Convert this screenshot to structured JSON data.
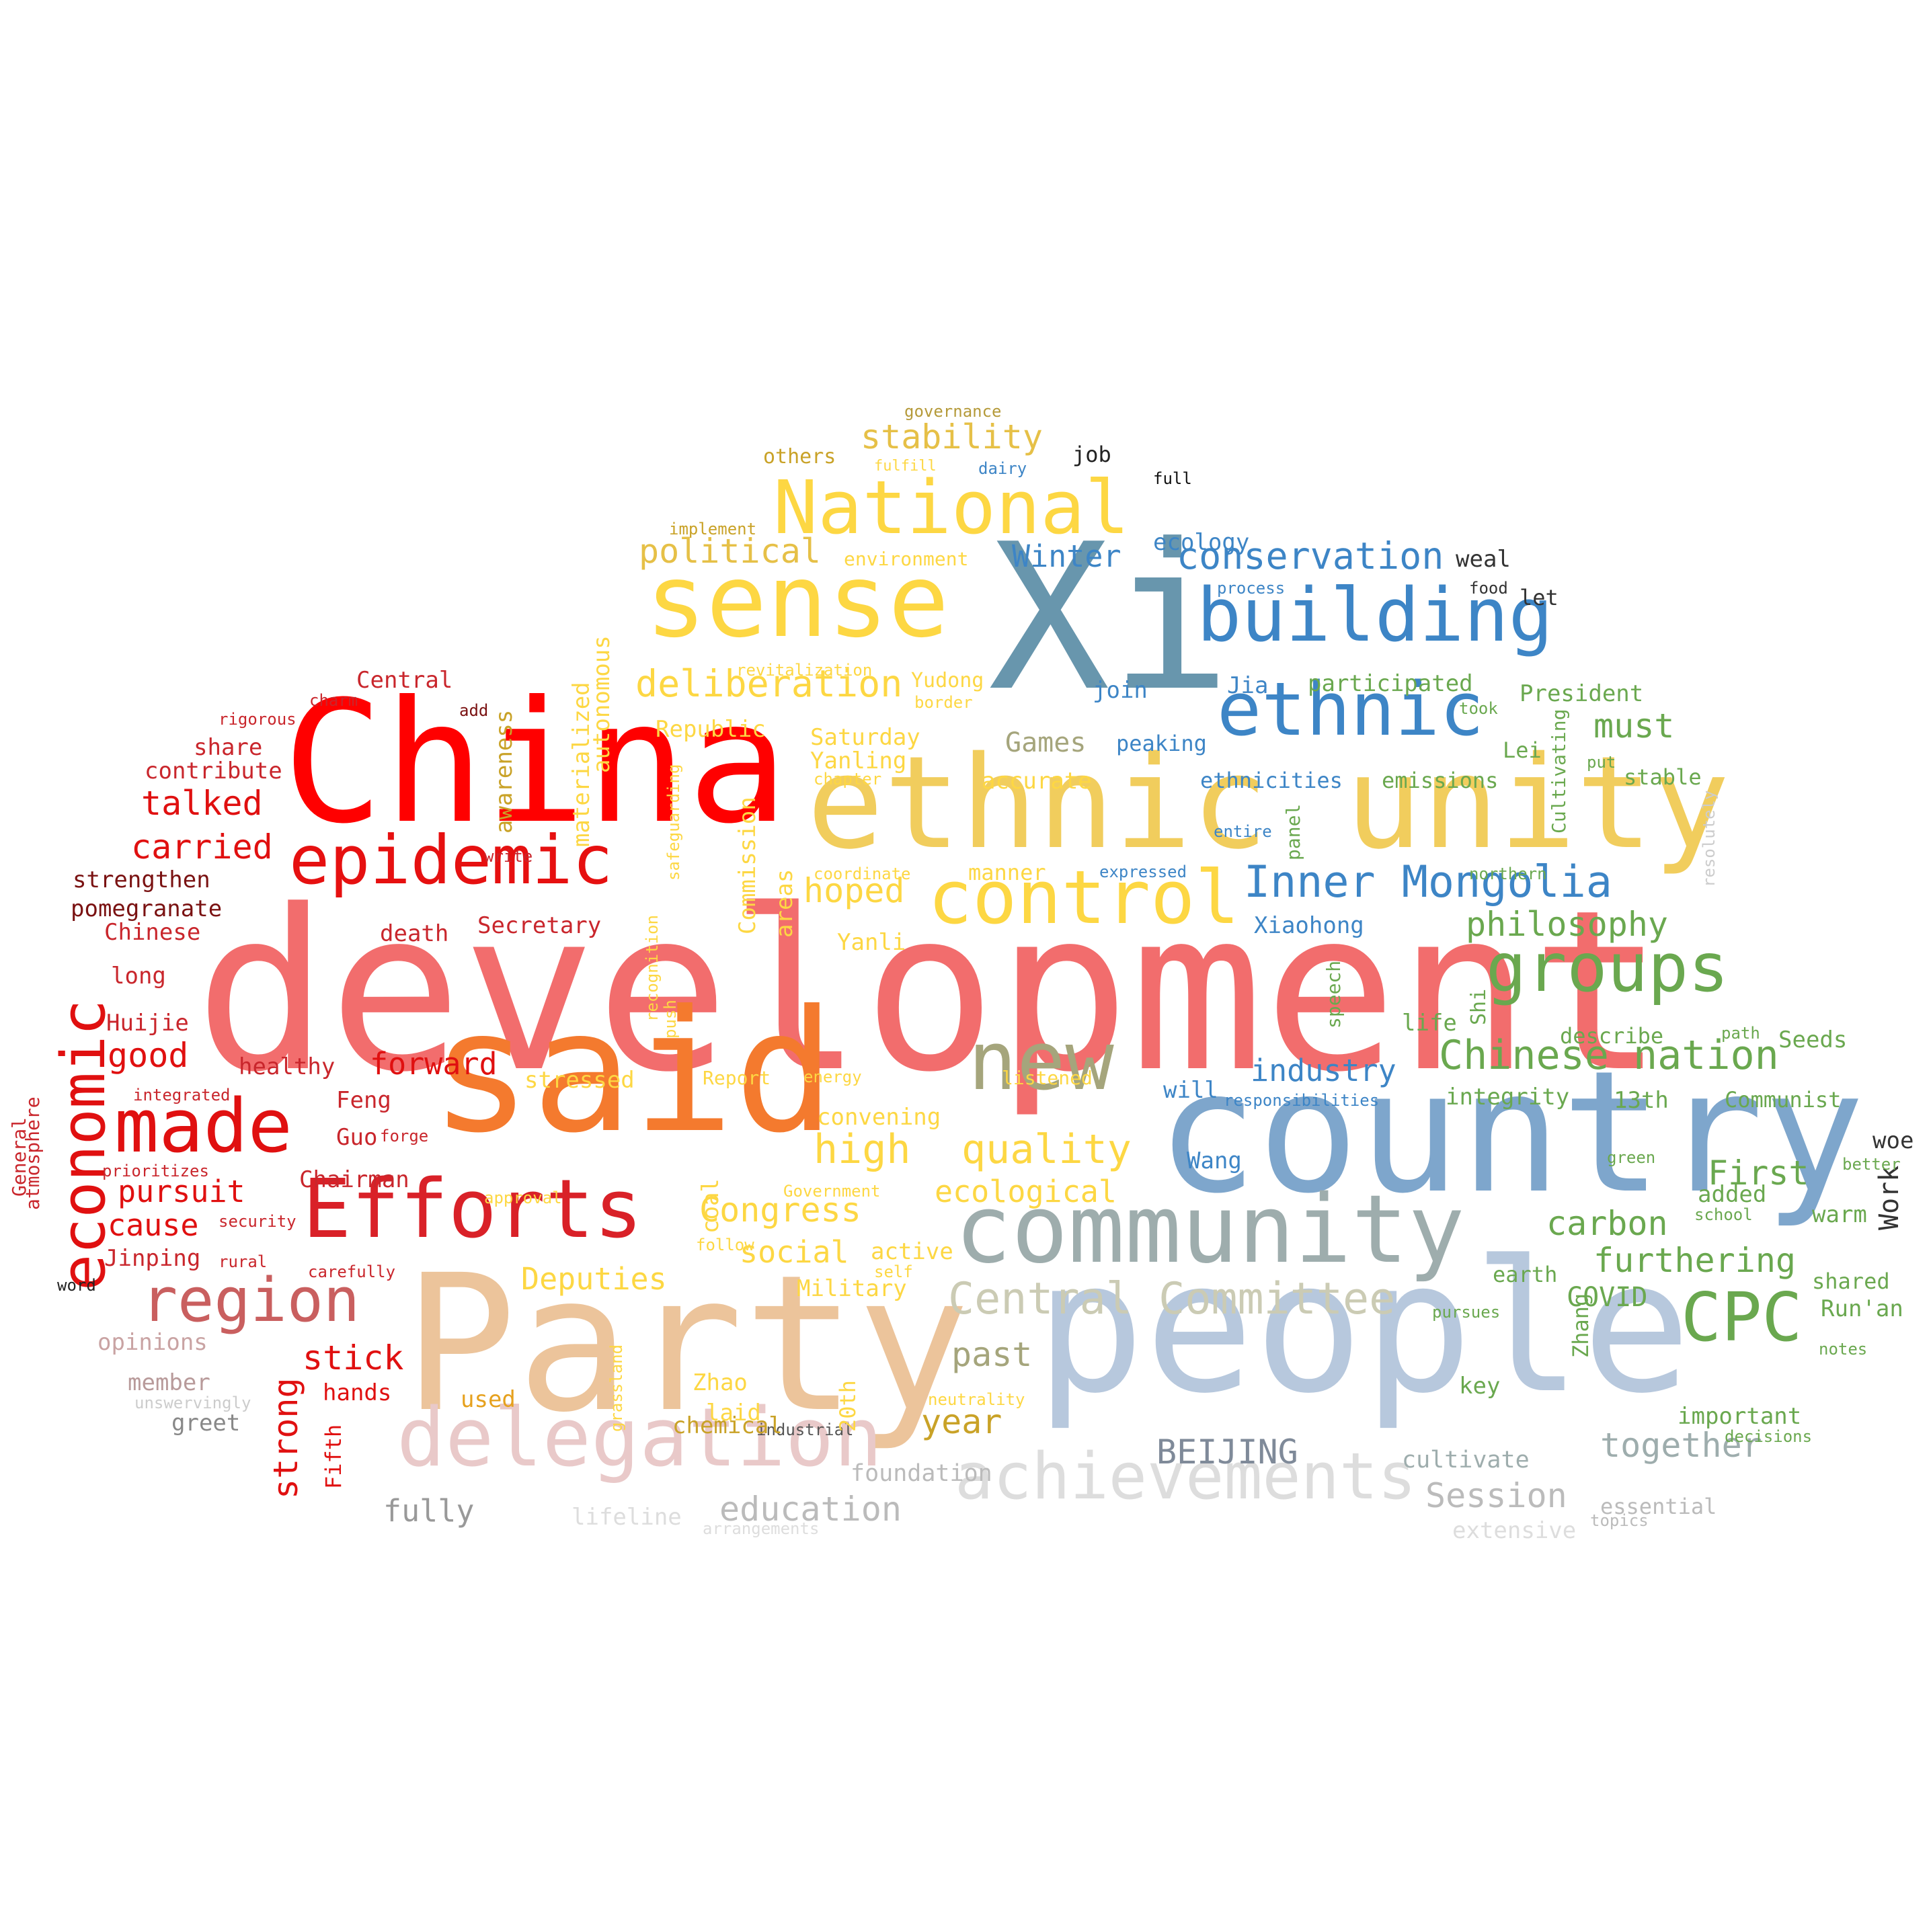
{
  "cloud": {
    "words": [
      {
        "text": "development",
        "color": "#f26d6d",
        "weight": 1.0
      },
      {
        "text": "people",
        "color": "#b7c8dd",
        "weight": 0.95
      },
      {
        "text": "country",
        "color": "#7ea6cc",
        "weight": 0.92
      },
      {
        "text": "Xi",
        "color": "#6896ad",
        "weight": 0.9
      },
      {
        "text": "Party",
        "color": "#ecc49b",
        "weight": 0.88
      },
      {
        "text": "China",
        "color": "#ff0000",
        "weight": 0.86
      },
      {
        "text": "said",
        "color": "#f47a2e",
        "weight": 0.84
      },
      {
        "text": "ethnic unity",
        "color": "#f1cd5d",
        "weight": 0.8
      },
      {
        "text": "sense",
        "color": "#fdd743",
        "weight": 0.7
      },
      {
        "text": "community",
        "color": "#9eadad",
        "weight": 0.65
      },
      {
        "text": "delegation",
        "color": "#e9c9c9",
        "weight": 0.62
      },
      {
        "text": "building",
        "color": "#3d85c6",
        "weight": 0.6
      },
      {
        "text": "ethnic",
        "color": "#3d85c6",
        "weight": 0.58
      },
      {
        "text": "Efforts",
        "color": "#d92128",
        "weight": 0.58
      },
      {
        "text": "achievements",
        "color": "#dddddd",
        "weight": 0.56
      },
      {
        "text": "new",
        "color": "#a5a57c",
        "weight": 0.55
      },
      {
        "text": "made",
        "color": "#e01010",
        "weight": 0.55
      },
      {
        "text": "epidemic",
        "color": "#e61010",
        "weight": 0.52
      },
      {
        "text": "control",
        "color": "#fdd743",
        "weight": 0.52
      },
      {
        "text": "National",
        "color": "#fdd743",
        "weight": 0.5
      },
      {
        "text": "groups",
        "color": "#6aa84f",
        "weight": 0.5
      },
      {
        "text": "region",
        "color": "#c95f5f",
        "weight": 0.48
      },
      {
        "text": "economic",
        "color": "#e01010",
        "weight": 0.48
      },
      {
        "text": "CPC",
        "color": "#6aa84f",
        "weight": 0.46
      },
      {
        "text": "Central Committee",
        "color": "#cbcbb4",
        "weight": 0.4
      },
      {
        "text": "Inner Mongolia",
        "color": "#3d85c6",
        "weight": 0.4
      },
      {
        "text": "Chinese nation",
        "color": "#6aa84f",
        "weight": 0.38
      },
      {
        "text": "conservation",
        "color": "#3d85c6",
        "weight": 0.35
      },
      {
        "text": "deliberation",
        "color": "#fdd743",
        "weight": 0.35
      },
      {
        "text": "political",
        "color": "#e6c047",
        "weight": 0.34
      },
      {
        "text": "stability",
        "color": "#e6c047",
        "weight": 0.34
      },
      {
        "text": "philosophy",
        "color": "#6aa84f",
        "weight": 0.34
      },
      {
        "text": "quality",
        "color": "#fdd743",
        "weight": 0.34
      },
      {
        "text": "high",
        "color": "#fdd743",
        "weight": 0.34
      },
      {
        "text": "Congress",
        "color": "#fdd743",
        "weight": 0.32
      },
      {
        "text": "ecological",
        "color": "#fdd743",
        "weight": 0.3
      },
      {
        "text": "stick",
        "color": "#e01010",
        "weight": 0.32
      },
      {
        "text": "strong",
        "color": "#e01010",
        "weight": 0.3
      },
      {
        "text": "talked",
        "color": "#e01010",
        "weight": 0.3
      },
      {
        "text": "carried",
        "color": "#e01010",
        "weight": 0.3
      },
      {
        "text": "good",
        "color": "#e01010",
        "weight": 0.3
      },
      {
        "text": "pursuit",
        "color": "#e01010",
        "weight": 0.28
      },
      {
        "text": "cause",
        "color": "#e01010",
        "weight": 0.28
      },
      {
        "text": "forward",
        "color": "#e01010",
        "weight": 0.28
      },
      {
        "text": "industry",
        "color": "#3d85c6",
        "weight": 0.32
      },
      {
        "text": "together",
        "color": "#9eadad",
        "weight": 0.32
      },
      {
        "text": "furthering",
        "color": "#6aa84f",
        "weight": 0.32
      },
      {
        "text": "carbon",
        "color": "#6aa84f",
        "weight": 0.3
      },
      {
        "text": "must",
        "color": "#6aa84f",
        "weight": 0.3
      },
      {
        "text": "First",
        "color": "#6aa84f",
        "weight": 0.3
      },
      {
        "text": "past",
        "color": "#a5a57c",
        "weight": 0.3
      },
      {
        "text": "year",
        "color": "#c9a227",
        "weight": 0.3
      },
      {
        "text": "Session",
        "color": "#bbbbbb",
        "weight": 0.3
      },
      {
        "text": "BEIJING",
        "color": "#7f8a99",
        "weight": 0.28
      },
      {
        "text": "education",
        "color": "#bbbbbb",
        "weight": 0.28
      },
      {
        "text": "fully",
        "color": "#999999",
        "weight": 0.26
      },
      {
        "text": "Deputies",
        "color": "#fdd743",
        "weight": 0.28
      },
      {
        "text": "social",
        "color": "#fdd743",
        "weight": 0.28
      },
      {
        "text": "hoped",
        "color": "#fdd743",
        "weight": 0.28
      },
      {
        "text": "Winter",
        "color": "#3d85c6",
        "weight": 0.26
      },
      {
        "text": "Games",
        "color": "#a5a57c",
        "weight": 0.26
      },
      {
        "text": "COVID",
        "color": "#6aa84f",
        "weight": 0.26
      },
      {
        "text": "Work",
        "color": "#333333",
        "weight": 0.26
      },
      {
        "text": "cultivate",
        "color": "#9eadad",
        "weight": 0.2
      },
      {
        "text": "foundation",
        "color": "#bbbbbb",
        "weight": 0.2
      },
      {
        "text": "others",
        "color": "#c9a227",
        "weight": 0.2
      },
      {
        "text": "job",
        "color": "#222222",
        "weight": 0.2
      },
      {
        "text": "full",
        "color": "#111111",
        "weight": 0.14
      },
      {
        "text": "governance",
        "color": "#b59a3a",
        "weight": 0.14
      },
      {
        "text": "fulfill",
        "color": "#fdd743",
        "weight": 0.14
      },
      {
        "text": "dairy",
        "color": "#3d85c6",
        "weight": 0.14
      },
      {
        "text": "implement",
        "color": "#c9a227",
        "weight": 0.14
      },
      {
        "text": "environment",
        "color": "#fdd743",
        "weight": 0.16
      },
      {
        "text": "ecology",
        "color": "#3d85c6",
        "weight": 0.18
      },
      {
        "text": "weal",
        "color": "#333333",
        "weight": 0.18
      },
      {
        "text": "process",
        "color": "#3d85c6",
        "weight": 0.14
      },
      {
        "text": "food",
        "color": "#333333",
        "weight": 0.14
      },
      {
        "text": "let",
        "color": "#333333",
        "weight": 0.18
      },
      {
        "text": "revitalization",
        "color": "#fdd743",
        "weight": 0.14
      },
      {
        "text": "Yudong",
        "color": "#fdd743",
        "weight": 0.18
      },
      {
        "text": "join",
        "color": "#3d85c6",
        "weight": 0.18
      },
      {
        "text": "Jia",
        "color": "#3d85c6",
        "weight": 0.18
      },
      {
        "text": "participated",
        "color": "#6aa84f",
        "weight": 0.18
      },
      {
        "text": "President",
        "color": "#6aa84f",
        "weight": 0.18
      },
      {
        "text": "took",
        "color": "#6aa84f",
        "weight": 0.14
      },
      {
        "text": "border",
        "color": "#fdd743",
        "weight": 0.14
      },
      {
        "text": "Republic",
        "color": "#fdd743",
        "weight": 0.18
      },
      {
        "text": "Saturday",
        "color": "#fdd743",
        "weight": 0.18
      },
      {
        "text": "Yanling",
        "color": "#fdd743",
        "weight": 0.18
      },
      {
        "text": "peaking",
        "color": "#3d85c6",
        "weight": 0.18
      },
      {
        "text": "Lei",
        "color": "#6aa84f",
        "weight": 0.18
      },
      {
        "text": "put",
        "color": "#6aa84f",
        "weight": 0.14
      },
      {
        "text": "stable",
        "color": "#6aa84f",
        "weight": 0.18
      },
      {
        "text": "chapter",
        "color": "#fdd743",
        "weight": 0.14
      },
      {
        "text": "accurate",
        "color": "#fdd743",
        "weight": 0.2
      },
      {
        "text": "ethnicities",
        "color": "#3d85c6",
        "weight": 0.18
      },
      {
        "text": "emissions",
        "color": "#6aa84f",
        "weight": 0.18
      },
      {
        "text": "entire",
        "color": "#3d85c6",
        "weight": 0.14
      },
      {
        "text": "panel",
        "color": "#6aa84f",
        "weight": 0.14
      },
      {
        "text": "Cultivating",
        "color": "#6aa84f",
        "weight": 0.14
      },
      {
        "text": "coordinate",
        "color": "#fdd743",
        "weight": 0.14
      },
      {
        "text": "manner",
        "color": "#fdd743",
        "weight": 0.18
      },
      {
        "text": "expressed",
        "color": "#3d85c6",
        "weight": 0.14
      },
      {
        "text": "northern",
        "color": "#6aa84f",
        "weight": 0.14
      },
      {
        "text": "resolutely",
        "color": "#cccccc",
        "weight": 0.14
      },
      {
        "text": "Xiaohong",
        "color": "#3d85c6",
        "weight": 0.18
      },
      {
        "text": "Yanli",
        "color": "#fdd743",
        "weight": 0.18
      },
      {
        "text": "speech",
        "color": "#6aa84f",
        "weight": 0.14
      },
      {
        "text": "life",
        "color": "#6aa84f",
        "weight": 0.18
      },
      {
        "text": "Shi",
        "color": "#6aa84f",
        "weight": 0.16
      },
      {
        "text": "describe",
        "color": "#6aa84f",
        "weight": 0.18
      },
      {
        "text": "path",
        "color": "#6aa84f",
        "weight": 0.14
      },
      {
        "text": "Seeds",
        "color": "#6aa84f",
        "weight": 0.18
      },
      {
        "text": "listened",
        "color": "#fdd743",
        "weight": 0.14
      },
      {
        "text": "energy",
        "color": "#fdd743",
        "weight": 0.14
      },
      {
        "text": "Report",
        "color": "#fdd743",
        "weight": 0.14
      },
      {
        "text": "stressed",
        "color": "#fdd743",
        "weight": 0.18
      },
      {
        "text": "convening",
        "color": "#fdd743",
        "weight": 0.18
      },
      {
        "text": "will",
        "color": "#3d85c6",
        "weight": 0.18
      },
      {
        "text": "responsibilities",
        "color": "#3d85c6",
        "weight": 0.14
      },
      {
        "text": "integrity",
        "color": "#6aa84f",
        "weight": 0.18
      },
      {
        "text": "13th",
        "color": "#6aa84f",
        "weight": 0.18
      },
      {
        "text": "Communist",
        "color": "#6aa84f",
        "weight": 0.18
      },
      {
        "text": "woe",
        "color": "#333333",
        "weight": 0.18
      },
      {
        "text": "Wang",
        "color": "#3d85c6",
        "weight": 0.18
      },
      {
        "text": "green",
        "color": "#6aa84f",
        "weight": 0.14
      },
      {
        "text": "better",
        "color": "#6aa84f",
        "weight": 0.14
      },
      {
        "text": "Government",
        "color": "#fdd743",
        "weight": 0.14
      },
      {
        "text": "approval",
        "color": "#fdd743",
        "weight": 0.14
      },
      {
        "text": "follow",
        "color": "#fdd743",
        "weight": 0.14
      },
      {
        "text": "active",
        "color": "#fdd743",
        "weight": 0.18
      },
      {
        "text": "self",
        "color": "#fdd743",
        "weight": 0.14
      },
      {
        "text": "Military",
        "color": "#fdd743",
        "weight": 0.18
      },
      {
        "text": "added",
        "color": "#6aa84f",
        "weight": 0.18
      },
      {
        "text": "school",
        "color": "#6aa84f",
        "weight": 0.14
      },
      {
        "text": "warm",
        "color": "#6aa84f",
        "weight": 0.18
      },
      {
        "text": "earth",
        "color": "#6aa84f",
        "weight": 0.18
      },
      {
        "text": "shared",
        "color": "#6aa84f",
        "weight": 0.18
      },
      {
        "text": "pursues",
        "color": "#6aa84f",
        "weight": 0.14
      },
      {
        "text": "Run'an",
        "color": "#6aa84f",
        "weight": 0.18
      },
      {
        "text": "notes",
        "color": "#6aa84f",
        "weight": 0.14
      },
      {
        "text": "Zhang",
        "color": "#6aa84f",
        "weight": 0.16
      },
      {
        "text": "key",
        "color": "#6aa84f",
        "weight": 0.18
      },
      {
        "text": "important",
        "color": "#6aa84f",
        "weight": 0.18
      },
      {
        "text": "decisions",
        "color": "#6aa84f",
        "weight": 0.14
      },
      {
        "text": "essential",
        "color": "#bbbbbb",
        "weight": 0.18
      },
      {
        "text": "topics",
        "color": "#bbbbbb",
        "weight": 0.14
      },
      {
        "text": "extensive",
        "color": "#dddddd",
        "weight": 0.18
      },
      {
        "text": "neutrality",
        "color": "#fdd743",
        "weight": 0.14
      },
      {
        "text": "industrial",
        "color": "#555555",
        "weight": 0.14
      },
      {
        "text": "Zhao",
        "color": "#fdd743",
        "weight": 0.18
      },
      {
        "text": "laid",
        "color": "#fdd743",
        "weight": 0.18
      },
      {
        "text": "20th",
        "color": "#fdd743",
        "weight": 0.16
      },
      {
        "text": "grassland",
        "color": "#fdd743",
        "weight": 0.14
      },
      {
        "text": "chemical",
        "color": "#c9a227",
        "weight": 0.18
      },
      {
        "text": "used",
        "color": "#e6a11e",
        "weight": 0.18
      },
      {
        "text": "lifeline",
        "color": "#dddddd",
        "weight": 0.18
      },
      {
        "text": "arrangements",
        "color": "#dddddd",
        "weight": 0.14
      },
      {
        "text": "coal",
        "color": "#fdd743",
        "weight": 0.16
      },
      {
        "text": "areas",
        "color": "#fdd743",
        "weight": 0.16
      },
      {
        "text": "Commission",
        "color": "#fdd743",
        "weight": 0.16
      },
      {
        "text": "push",
        "color": "#fdd743",
        "weight": 0.14
      },
      {
        "text": "recognition",
        "color": "#fdd743",
        "weight": 0.14
      },
      {
        "text": "safeguarding",
        "color": "#fdd743",
        "weight": 0.14
      },
      {
        "text": "autonomous",
        "color": "#fdd743",
        "weight": 0.18
      },
      {
        "text": "materialized",
        "color": "#fdd743",
        "weight": 0.18
      },
      {
        "text": "awareness",
        "color": "#c9a227",
        "weight": 0.16
      },
      {
        "text": "Central",
        "color": "#c9262c",
        "weight": 0.18
      },
      {
        "text": "charm",
        "color": "#c9262c",
        "weight": 0.14
      },
      {
        "text": "add",
        "color": "#7a1212",
        "weight": 0.14
      },
      {
        "text": "rigorous",
        "color": "#c9262c",
        "weight": 0.14
      },
      {
        "text": "share",
        "color": "#c9262c",
        "weight": 0.18
      },
      {
        "text": "contribute",
        "color": "#c9262c",
        "weight": 0.18
      },
      {
        "text": "write",
        "color": "#c9262c",
        "weight": 0.14
      },
      {
        "text": "strengthen",
        "color": "#7a1212",
        "weight": 0.18
      },
      {
        "text": "pomegranate",
        "color": "#7a1212",
        "weight": 0.18
      },
      {
        "text": "Chinese",
        "color": "#c9262c",
        "weight": 0.18
      },
      {
        "text": "death",
        "color": "#c9262c",
        "weight": 0.18
      },
      {
        "text": "Secretary",
        "color": "#c9262c",
        "weight": 0.18
      },
      {
        "text": "long",
        "color": "#c9262c",
        "weight": 0.18
      },
      {
        "text": "Huijie",
        "color": "#c9262c",
        "weight": 0.18
      },
      {
        "text": "healthy",
        "color": "#c9262c",
        "weight": 0.18
      },
      {
        "text": "integrated",
        "color": "#c9262c",
        "weight": 0.14
      },
      {
        "text": "Feng",
        "color": "#c9262c",
        "weight": 0.18
      },
      {
        "text": "Guo",
        "color": "#c9262c",
        "weight": 0.18
      },
      {
        "text": "forge",
        "color": "#c9262c",
        "weight": 0.14
      },
      {
        "text": "prioritizes",
        "color": "#c9262c",
        "weight": 0.14
      },
      {
        "text": "Chairman",
        "color": "#c9262c",
        "weight": 0.18
      },
      {
        "text": "security",
        "color": "#c9262c",
        "weight": 0.14
      },
      {
        "text": "Jinping",
        "color": "#c9262c",
        "weight": 0.18
      },
      {
        "text": "rural",
        "color": "#c9262c",
        "weight": 0.14
      },
      {
        "text": "carefully",
        "color": "#c9262c",
        "weight": 0.14
      },
      {
        "text": "word",
        "color": "#222222",
        "weight": 0.14
      },
      {
        "text": "hands",
        "color": "#e01010",
        "weight": 0.18
      },
      {
        "text": "Fifth",
        "color": "#e01010",
        "weight": 0.16
      },
      {
        "text": "opinions",
        "color": "#c9a3a3",
        "weight": 0.18
      },
      {
        "text": "member",
        "color": "#b89a9a",
        "weight": 0.18
      },
      {
        "text": "unswervingly",
        "color": "#cccccc",
        "weight": 0.14
      },
      {
        "text": "greet",
        "color": "#888888",
        "weight": 0.18
      },
      {
        "text": "General",
        "color": "#c9262c",
        "weight": 0.16
      },
      {
        "text": "atmosphere",
        "color": "#c9262c",
        "weight": 0.16
      }
    ]
  }
}
